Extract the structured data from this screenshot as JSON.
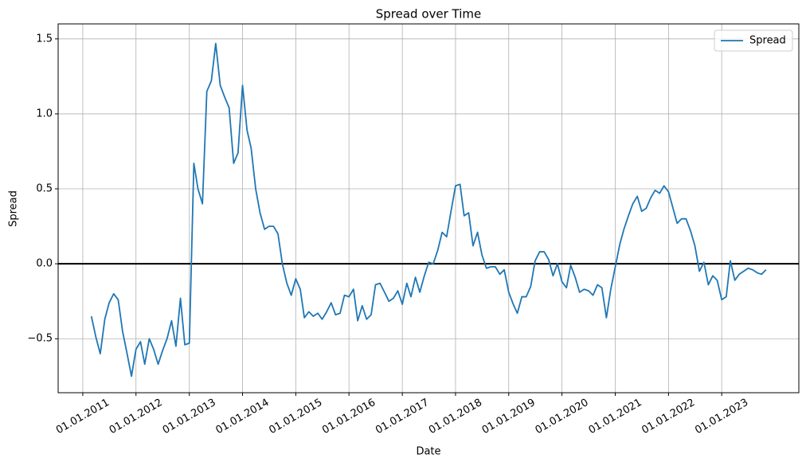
{
  "chart_data": {
    "type": "line",
    "title": "Spread over Time",
    "x_label": "Date",
    "y_label": "Spread",
    "x": [
      "2011-03-01",
      "2011-04-01",
      "2011-05-01",
      "2011-06-01",
      "2011-07-01",
      "2011-08-01",
      "2011-09-01",
      "2011-10-01",
      "2011-11-01",
      "2011-12-01",
      "2012-01-01",
      "2012-02-01",
      "2012-03-01",
      "2012-04-01",
      "2012-05-01",
      "2012-06-01",
      "2012-07-01",
      "2012-08-01",
      "2012-09-01",
      "2012-10-01",
      "2012-11-01",
      "2012-12-01",
      "2013-01-01",
      "2013-02-01",
      "2013-03-01",
      "2013-04-01",
      "2013-05-01",
      "2013-06-01",
      "2013-07-01",
      "2013-08-01",
      "2013-09-01",
      "2013-10-01",
      "2013-11-01",
      "2013-12-01",
      "2014-01-01",
      "2014-02-01",
      "2014-03-01",
      "2014-04-01",
      "2014-05-01",
      "2014-06-01",
      "2014-07-01",
      "2014-08-01",
      "2014-09-01",
      "2014-10-01",
      "2014-11-01",
      "2014-12-01",
      "2015-01-01",
      "2015-02-01",
      "2015-03-01",
      "2015-04-01",
      "2015-05-01",
      "2015-06-01",
      "2015-07-01",
      "2015-08-01",
      "2015-09-01",
      "2015-10-01",
      "2015-11-01",
      "2015-12-01",
      "2016-01-01",
      "2016-02-01",
      "2016-03-01",
      "2016-04-01",
      "2016-05-01",
      "2016-06-01",
      "2016-07-01",
      "2016-08-01",
      "2016-09-01",
      "2016-10-01",
      "2016-11-01",
      "2016-12-01",
      "2017-01-01",
      "2017-02-01",
      "2017-03-01",
      "2017-04-01",
      "2017-05-01",
      "2017-06-01",
      "2017-07-01",
      "2017-08-01",
      "2017-09-01",
      "2017-10-01",
      "2017-11-01",
      "2017-12-01",
      "2018-01-01",
      "2018-02-01",
      "2018-03-01",
      "2018-04-01",
      "2018-05-01",
      "2018-06-01",
      "2018-07-01",
      "2018-08-01",
      "2018-09-01",
      "2018-10-01",
      "2018-11-01",
      "2018-12-01",
      "2019-01-01",
      "2019-02-01",
      "2019-03-01",
      "2019-04-01",
      "2019-05-01",
      "2019-06-01",
      "2019-07-01",
      "2019-08-01",
      "2019-09-01",
      "2019-10-01",
      "2019-11-01",
      "2019-12-01",
      "2020-01-01",
      "2020-02-01",
      "2020-03-01",
      "2020-04-01",
      "2020-05-01",
      "2020-06-01",
      "2020-07-01",
      "2020-08-01",
      "2020-09-01",
      "2020-10-01",
      "2020-11-01",
      "2020-12-01",
      "2021-01-01",
      "2021-02-01",
      "2021-03-01",
      "2021-04-01",
      "2021-05-01",
      "2021-06-01",
      "2021-07-01",
      "2021-08-01",
      "2021-09-01",
      "2021-10-01",
      "2021-11-01",
      "2021-12-01",
      "2022-01-01",
      "2022-02-01",
      "2022-03-01",
      "2022-04-01",
      "2022-05-01",
      "2022-06-01",
      "2022-07-01",
      "2022-08-01",
      "2022-09-01",
      "2022-10-01",
      "2022-11-01",
      "2022-12-01",
      "2023-01-01",
      "2023-02-01",
      "2023-03-01",
      "2023-04-01",
      "2023-05-01",
      "2023-06-01",
      "2023-07-01",
      "2023-08-01",
      "2023-09-01",
      "2023-10-01",
      "2023-11-01"
    ],
    "series": [
      {
        "name": "Spread",
        "color": "#1f77b4",
        "values": [
          -0.35,
          -0.49,
          -0.6,
          -0.37,
          -0.26,
          -0.2,
          -0.24,
          -0.45,
          -0.6,
          -0.75,
          -0.57,
          -0.52,
          -0.67,
          -0.5,
          -0.57,
          -0.67,
          -0.58,
          -0.5,
          -0.38,
          -0.55,
          -0.23,
          -0.54,
          -0.53,
          0.67,
          0.5,
          0.4,
          1.15,
          1.22,
          1.47,
          1.19,
          1.11,
          1.04,
          0.67,
          0.74,
          1.19,
          0.89,
          0.77,
          0.5,
          0.34,
          0.23,
          0.25,
          0.25,
          0.2,
          0.0,
          -0.13,
          -0.21,
          -0.1,
          -0.17,
          -0.36,
          -0.32,
          -0.35,
          -0.33,
          -0.37,
          -0.32,
          -0.26,
          -0.34,
          -0.33,
          -0.21,
          -0.22,
          -0.17,
          -0.38,
          -0.28,
          -0.37,
          -0.34,
          -0.14,
          -0.13,
          -0.19,
          -0.25,
          -0.23,
          -0.18,
          -0.27,
          -0.13,
          -0.22,
          -0.09,
          -0.19,
          -0.08,
          0.01,
          0.0,
          0.09,
          0.21,
          0.18,
          0.35,
          0.52,
          0.53,
          0.32,
          0.34,
          0.12,
          0.21,
          0.06,
          -0.03,
          -0.02,
          -0.02,
          -0.07,
          -0.04,
          -0.19,
          -0.27,
          -0.33,
          -0.22,
          -0.22,
          -0.15,
          0.02,
          0.08,
          0.08,
          0.03,
          -0.08,
          0.0,
          -0.12,
          -0.16,
          -0.01,
          -0.09,
          -0.19,
          -0.17,
          -0.18,
          -0.21,
          -0.14,
          -0.16,
          -0.36,
          -0.17,
          -0.02,
          0.13,
          0.23,
          0.32,
          0.4,
          0.45,
          0.35,
          0.37,
          0.44,
          0.49,
          0.47,
          0.52,
          0.48,
          0.37,
          0.27,
          0.3,
          0.3,
          0.22,
          0.12,
          -0.05,
          0.01,
          -0.14,
          -0.08,
          -0.11,
          -0.24,
          -0.22,
          0.02,
          -0.11,
          -0.07,
          -0.05,
          -0.03,
          -0.04,
          -0.06,
          -0.07,
          -0.04
        ]
      }
    ],
    "reference_line": 0,
    "xlim": [
      "2010-07-16",
      "2024-06-13"
    ],
    "xticks": [
      {
        "value": "2011-01-01",
        "label": "01.01.2011"
      },
      {
        "value": "2012-01-01",
        "label": "01.01.2012"
      },
      {
        "value": "2013-01-01",
        "label": "01.01.2013"
      },
      {
        "value": "2014-01-01",
        "label": "01.01.2014"
      },
      {
        "value": "2015-01-01",
        "label": "01.01.2015"
      },
      {
        "value": "2016-01-01",
        "label": "01.01.2016"
      },
      {
        "value": "2017-01-01",
        "label": "01.01.2017"
      },
      {
        "value": "2018-01-01",
        "label": "01.01.2018"
      },
      {
        "value": "2019-01-01",
        "label": "01.01.2019"
      },
      {
        "value": "2020-01-01",
        "label": "01.01.2020"
      },
      {
        "value": "2021-01-01",
        "label": "01.01.2021"
      },
      {
        "value": "2022-01-01",
        "label": "01.01.2022"
      },
      {
        "value": "2023-01-01",
        "label": "01.01.2023"
      }
    ],
    "ylim": [
      -0.86,
      1.6
    ],
    "yticks": [
      {
        "value": -0.5,
        "label": "−0.5"
      },
      {
        "value": 0,
        "label": "0.0"
      },
      0.5,
      {
        "value": 1,
        "label": "1.0"
      },
      1.5
    ],
    "grid": true,
    "legend": "upper right"
  }
}
